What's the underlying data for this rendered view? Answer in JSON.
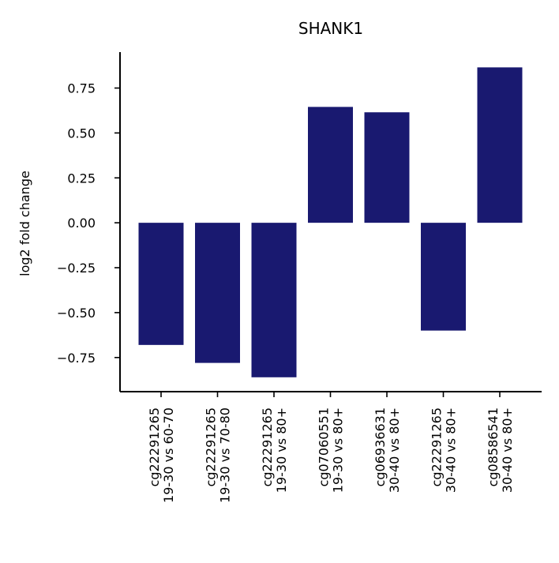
{
  "chart_data": {
    "type": "bar",
    "title": "SHANK1",
    "xlabel": "",
    "ylabel": "log2 fold change",
    "categories": [
      [
        "cg22291265",
        "19-30 vs 60-70"
      ],
      [
        "cg22291265",
        "19-30 vs 70-80"
      ],
      [
        "cg22291265",
        "19-30 vs 80+"
      ],
      [
        "cg07060551",
        "19-30 vs 80+"
      ],
      [
        "cg06936631",
        "30-40 vs 80+"
      ],
      [
        "cg22291265",
        "30-40 vs 80+"
      ],
      [
        "cg08586541",
        "30-40 vs 80+"
      ]
    ],
    "values": [
      -0.68,
      -0.78,
      -0.86,
      0.645,
      0.615,
      -0.6,
      0.865
    ],
    "yticks": [
      -0.75,
      -0.5,
      -0.25,
      0.0,
      0.25,
      0.5,
      0.75
    ],
    "ytick_labels": [
      "−0.75",
      "−0.50",
      "−0.25",
      "0.00",
      "0.25",
      "0.50",
      "0.75"
    ],
    "ylim": [
      -0.94,
      0.95
    ],
    "grid": false,
    "legend": "none",
    "bar_color": "#191970"
  }
}
